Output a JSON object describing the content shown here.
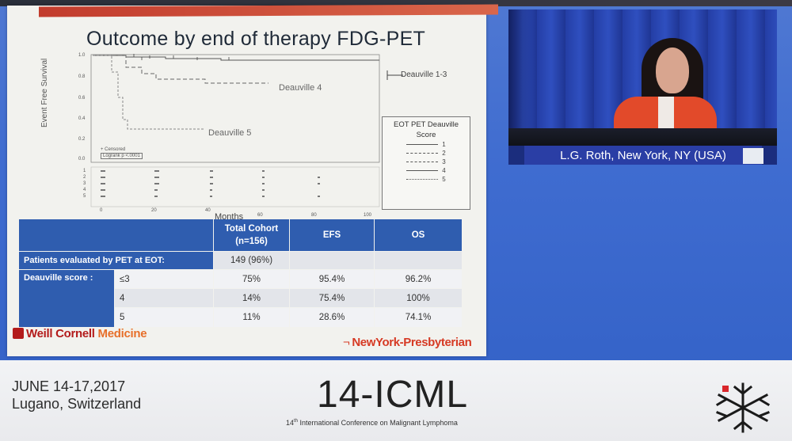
{
  "slide": {
    "title": "Outcome by end of therapy FDG-PET",
    "plot": {
      "y_axis_label": "Event Free Survival",
      "x_axis_label": "Months",
      "y_ticks": [
        "1.0",
        "0.8",
        "0.6",
        "0.4",
        "0.2",
        "0.0"
      ],
      "x_ticks": [
        "0",
        "20",
        "40",
        "60",
        "80",
        "100"
      ],
      "curve_labels": {
        "d13": "Deauville 1-3",
        "d4": "Deauville 4",
        "d5": "Deauville 5"
      },
      "censor_legend": {
        "censored": "+ Censored",
        "logrank": "Logrank p <.0001"
      },
      "risk_rows": [
        "1",
        "2",
        "3",
        "4",
        "5"
      ],
      "legend": {
        "title": "EOT PET Deauville Score",
        "items": [
          "1",
          "2",
          "3",
          "4",
          "5"
        ]
      }
    },
    "table": {
      "headers": [
        "Total Cohort (n=156)",
        "EFS",
        "OS"
      ],
      "pet_row": {
        "label": "Patients evaluated by PET at EOT:",
        "total": "149 (96%)"
      },
      "deauville_label": "Deauville score :",
      "rows": [
        {
          "score": "≤3",
          "total": "75%",
          "efs": "95.4%",
          "os": "96.2%"
        },
        {
          "score": "4",
          "total": "14%",
          "efs": "75.4%",
          "os": "100%"
        },
        {
          "score": "5",
          "total": "11%",
          "efs": "28.6%",
          "os": "74.1%"
        }
      ]
    },
    "logos": {
      "weill_part1": "Weill Cornell ",
      "weill_part2": "Medicine",
      "nyp": "NewYork-Presbyterian"
    }
  },
  "video": {
    "caption": "L.G. Roth, New York, NY (USA)"
  },
  "banner": {
    "dates": "JUNE 14-17,2017",
    "location": "Lugano, Switzerland",
    "conference": "14-ICML",
    "conference_sub_num": "14",
    "conference_sub_sup": "th",
    "conference_sub_text": "International Conference on Malignant Lymphoma"
  },
  "colors": {
    "table_header_blue": "#2f5daf",
    "screen_blue": "#3f6cd0",
    "brand_red": "#b31b1b",
    "speaker_jacket": "#e24a2a"
  }
}
